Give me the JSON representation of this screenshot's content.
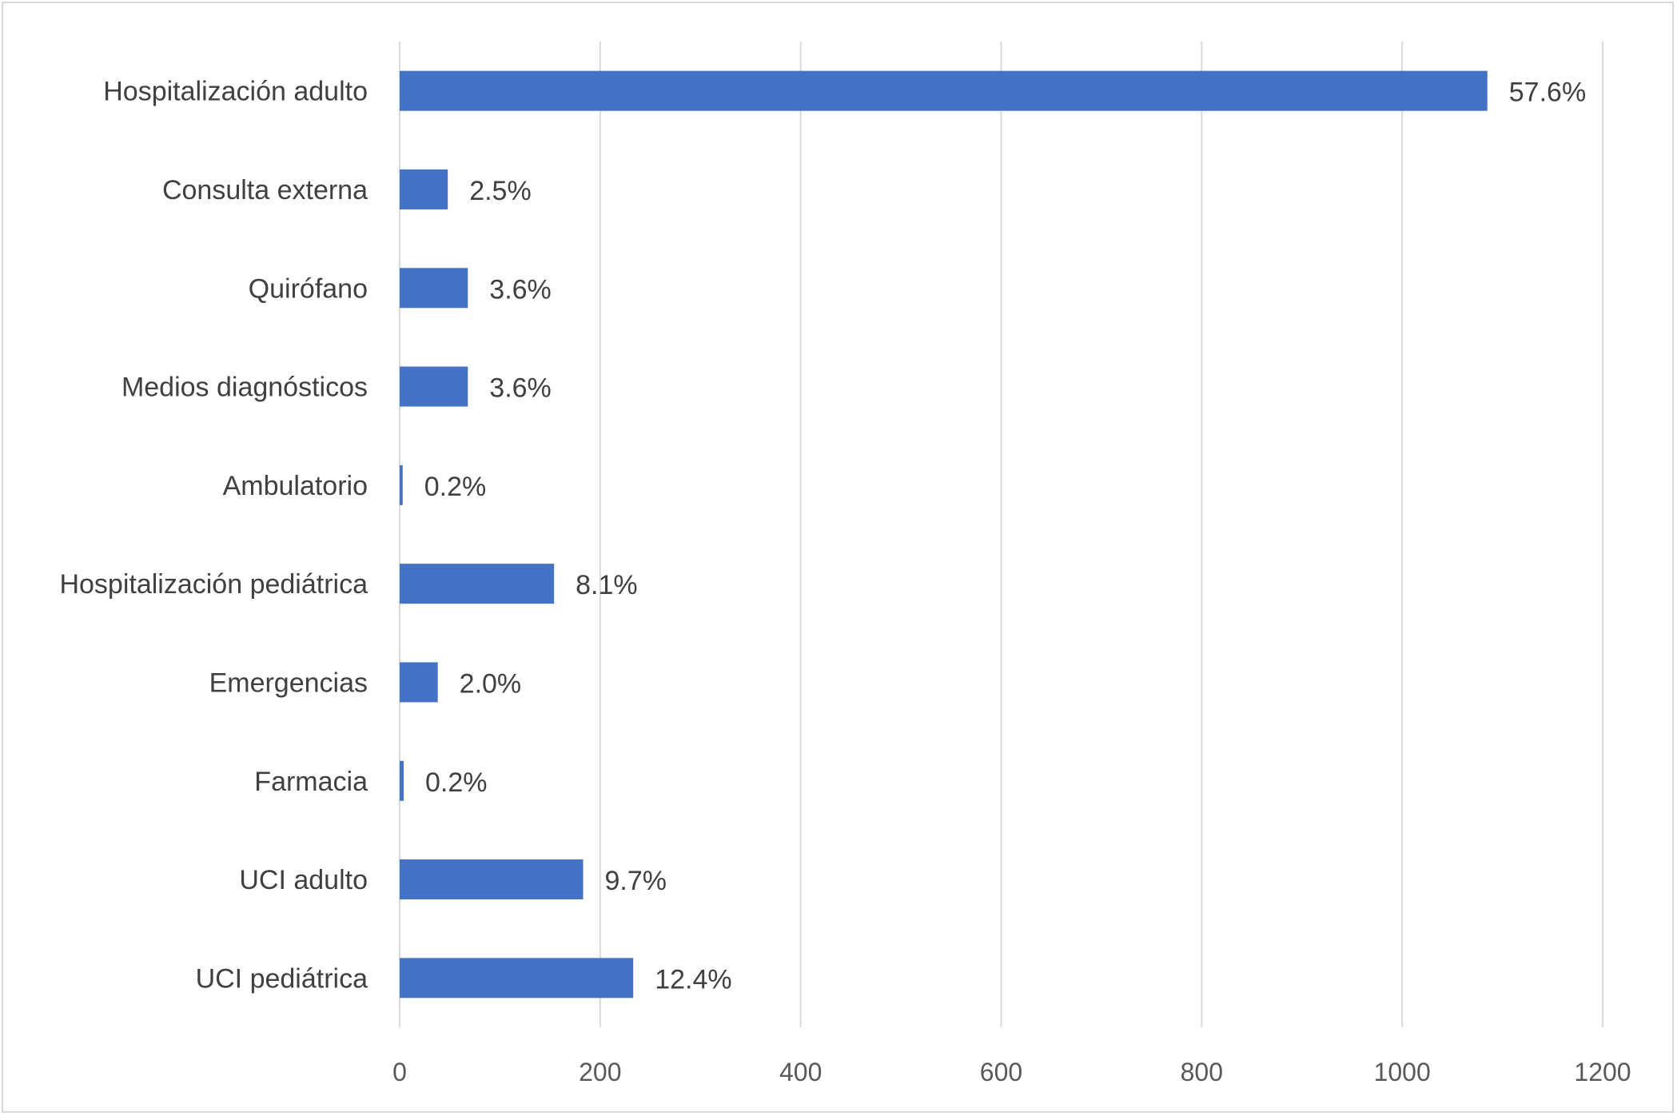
{
  "chart_data": {
    "type": "bar",
    "orientation": "horizontal",
    "categories": [
      "Hospitalización adulto",
      "Consulta externa",
      "Quirófano",
      "Medios diagnósticos",
      "Ambulatorio",
      "Hospitalización pediátrica",
      "Emergencias",
      "Farmacia",
      "UCI adulto",
      "UCI pediátrica"
    ],
    "values": [
      1085,
      48,
      68,
      68,
      3,
      154,
      38,
      4,
      183,
      233
    ],
    "data_labels": [
      "57.6%",
      "2.5%",
      "3.6%",
      "3.6%",
      "0.2%",
      "8.1%",
      "2.0%",
      "0.2%",
      "9.7%",
      "12.4%"
    ],
    "xlim": [
      0,
      1200
    ],
    "xticks": [
      "0",
      "200",
      "400",
      "600",
      "800",
      "1000",
      "1200"
    ],
    "title": "",
    "xlabel": "",
    "ylabel": "",
    "grid": "vertical",
    "legend": "none",
    "bar_color": "#4472C4",
    "grid_color": "#d9d9d9"
  }
}
